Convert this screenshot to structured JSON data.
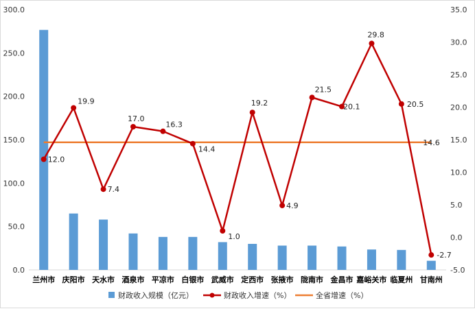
{
  "chart_data": {
    "type": "bar",
    "categories": [
      "兰州市",
      "庆阳市",
      "天水市",
      "酒泉市",
      "平凉市",
      "白银市",
      "武威市",
      "定西市",
      "张掖市",
      "陇南市",
      "金昌市",
      "嘉峪关市",
      "临夏州",
      "甘南州"
    ],
    "series": [
      {
        "name": "财政收入规模（亿元）",
        "type": "bar",
        "axis": "left",
        "values": [
          276.6,
          65.0,
          58.0,
          42.0,
          38.0,
          38.0,
          32.0,
          30.0,
          28.0,
          28.0,
          27.0,
          23.5,
          23.0,
          10.5
        ]
      },
      {
        "name": "财政收入增速（%）",
        "type": "line",
        "axis": "right",
        "values": [
          12.0,
          19.9,
          7.4,
          17.0,
          16.3,
          14.4,
          1.0,
          19.2,
          4.9,
          21.5,
          20.1,
          29.8,
          20.5,
          -2.7
        ],
        "labels": [
          "12.0",
          "19.9",
          "7.4",
          "17.0",
          "16.3",
          "14.4",
          "1.0",
          "19.2",
          "4.9",
          "21.5",
          "20.1",
          "29.8",
          "20.5",
          "-2.7"
        ]
      },
      {
        "name": "全省增速（%）",
        "type": "reference-line",
        "axis": "right",
        "value": 14.6,
        "label": "14.6"
      }
    ],
    "y_left": {
      "min": 0,
      "max": 300,
      "step": 50,
      "ticks": [
        "0.0",
        "50.0",
        "100.0",
        "150.0",
        "200.0",
        "250.0",
        "300.0"
      ]
    },
    "y_right": {
      "min": -5,
      "max": 35,
      "step": 5,
      "ticks": [
        "-5.0",
        "0.0",
        "5.0",
        "10.0",
        "15.0",
        "20.0",
        "25.0",
        "30.0",
        "35.0"
      ]
    },
    "grid": false,
    "legend": "bottom",
    "colors": {
      "bar": "#5b9bd5",
      "line": "#c00000",
      "reference": "#ed7d31",
      "axis": "#d9d9d9"
    }
  }
}
